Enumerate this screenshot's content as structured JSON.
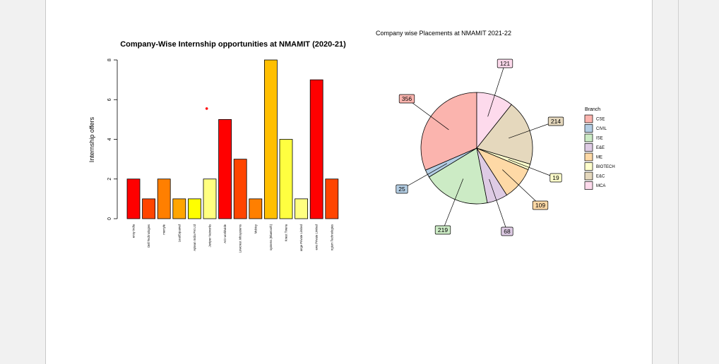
{
  "colors": {
    "page_background": "#ffffff",
    "viewer_background": "#f1f1f1"
  },
  "chart_data": [
    {
      "type": "bar",
      "title": "Company-Wise Internship opportunities at NMAMIT (2020-21)",
      "xlabel": "",
      "ylabel": "Internship offers",
      "ylim": [
        0,
        8
      ],
      "yticks": [
        "0",
        "2",
        "4",
        "6",
        "8"
      ],
      "grid": false,
      "categories": [
        "ensy India",
        "Dell Technologies",
        "mentyle",
        "LeadSquared",
        "Aptean India Pvt Ltd",
        "Juniper Networks",
        "ACI worldwide",
        "Lowcrest Infosystems",
        "Mobicy",
        "systems (Bluetooth)",
        "Knest Tiveria",
        "ange Private Limited",
        "ews Private Limited",
        "ngium Technologies"
      ],
      "values": [
        2,
        1,
        2,
        1,
        1,
        2,
        5,
        3,
        1,
        8,
        4,
        1,
        7,
        2
      ],
      "bar_colors": [
        "#ff0000",
        "#ff4500",
        "#ff7f00",
        "#ffa500",
        "#ffff00",
        "#ffff80",
        "#ff0000",
        "#ff4500",
        "#ff7f00",
        "#ffbf00",
        "#ffff40",
        "#ffff80",
        "#ff0000",
        "#ff4500"
      ],
      "marker": {
        "x_index": 4.8,
        "y": 5.55,
        "color": "#ff0000"
      }
    },
    {
      "type": "pie",
      "title": "Company wise Placements at NMAMIT 2021-22",
      "legend_title": "Branch",
      "legend_position": "right",
      "labels": [
        "CSE",
        "CIVIL",
        "ISE",
        "E&E",
        "ME",
        "BIOTECH",
        "E&C",
        "MCA"
      ],
      "values": [
        356,
        25,
        219,
        68,
        109,
        19,
        214,
        121
      ],
      "colors": [
        "#fbb4ae",
        "#b3cde3",
        "#ccebc5",
        "#decbe4",
        "#fed9a6",
        "#ffffcc",
        "#e5d8bd",
        "#fddaec"
      ],
      "data_labels": [
        "356",
        "25",
        "219",
        "68",
        "109",
        "19",
        "214",
        "121"
      ]
    }
  ]
}
